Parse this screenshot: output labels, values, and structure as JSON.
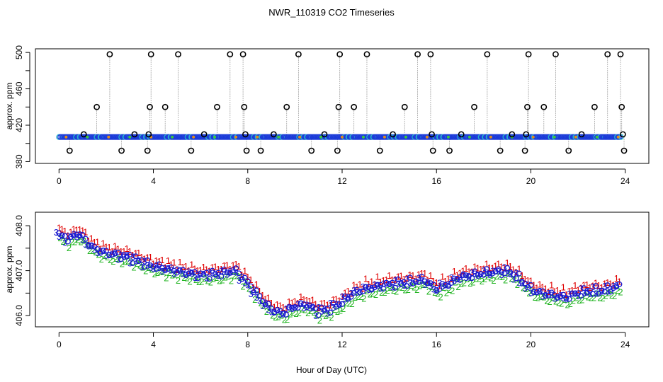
{
  "title": "NWR_110319  CO2 Timeseries",
  "xlabel_common": "Hour of Day (UTC)",
  "chart_data": [
    {
      "type": "scatter",
      "title": "NWR_110319  CO2 Timeseries",
      "ylabel": "approx. ppm",
      "xlim": [
        -1,
        25
      ],
      "ylim": [
        378,
        504
      ],
      "x_ticks": [
        0,
        4,
        8,
        12,
        16,
        20,
        24
      ],
      "x_tick_labels": [
        "0",
        "4",
        "8",
        "12",
        "16",
        "20",
        "24"
      ],
      "y_ticks": [
        380,
        420,
        460,
        500
      ],
      "y_tick_labels": [
        "380",
        "420",
        "460",
        "500"
      ],
      "y_minor_ticks": [
        400,
        440,
        480
      ],
      "baseline": 407,
      "spikes": [
        {
          "x": 0.45,
          "y": 392
        },
        {
          "x": 1.05,
          "y": 410
        },
        {
          "x": 1.6,
          "y": 440
        },
        {
          "x": 2.15,
          "y": 498
        },
        {
          "x": 2.65,
          "y": 392
        },
        {
          "x": 3.2,
          "y": 410
        },
        {
          "x": 3.75,
          "y": 392
        },
        {
          "x": 3.8,
          "y": 410
        },
        {
          "x": 3.85,
          "y": 440
        },
        {
          "x": 3.9,
          "y": 498
        },
        {
          "x": 4.5,
          "y": 440
        },
        {
          "x": 5.05,
          "y": 498
        },
        {
          "x": 5.6,
          "y": 392
        },
        {
          "x": 6.15,
          "y": 410
        },
        {
          "x": 6.7,
          "y": 440
        },
        {
          "x": 7.25,
          "y": 498
        },
        {
          "x": 7.8,
          "y": 498
        },
        {
          "x": 7.85,
          "y": 440
        },
        {
          "x": 7.9,
          "y": 410
        },
        {
          "x": 7.95,
          "y": 392
        },
        {
          "x": 8.55,
          "y": 392
        },
        {
          "x": 9.1,
          "y": 410
        },
        {
          "x": 9.65,
          "y": 440
        },
        {
          "x": 10.15,
          "y": 498
        },
        {
          "x": 10.7,
          "y": 392
        },
        {
          "x": 11.25,
          "y": 410
        },
        {
          "x": 11.8,
          "y": 392
        },
        {
          "x": 11.85,
          "y": 440
        },
        {
          "x": 11.9,
          "y": 498
        },
        {
          "x": 12.5,
          "y": 440
        },
        {
          "x": 13.05,
          "y": 498
        },
        {
          "x": 13.6,
          "y": 392
        },
        {
          "x": 14.15,
          "y": 410
        },
        {
          "x": 14.65,
          "y": 440
        },
        {
          "x": 15.2,
          "y": 498
        },
        {
          "x": 15.75,
          "y": 498
        },
        {
          "x": 15.8,
          "y": 410
        },
        {
          "x": 15.85,
          "y": 392
        },
        {
          "x": 16.55,
          "y": 392
        },
        {
          "x": 17.05,
          "y": 410
        },
        {
          "x": 17.6,
          "y": 440
        },
        {
          "x": 18.15,
          "y": 498
        },
        {
          "x": 18.7,
          "y": 392
        },
        {
          "x": 19.2,
          "y": 410
        },
        {
          "x": 19.75,
          "y": 392
        },
        {
          "x": 19.8,
          "y": 410
        },
        {
          "x": 19.85,
          "y": 440
        },
        {
          "x": 19.9,
          "y": 498
        },
        {
          "x": 20.55,
          "y": 440
        },
        {
          "x": 21.05,
          "y": 498
        },
        {
          "x": 21.6,
          "y": 392
        },
        {
          "x": 22.15,
          "y": 410
        },
        {
          "x": 22.7,
          "y": 440
        },
        {
          "x": 23.25,
          "y": 498
        },
        {
          "x": 23.8,
          "y": 498
        },
        {
          "x": 23.85,
          "y": 440
        },
        {
          "x": 23.9,
          "y": 410
        },
        {
          "x": 23.95,
          "y": 392
        }
      ]
    },
    {
      "type": "scatter",
      "ylabel": "approx. ppm",
      "xlabel": "Hour of Day (UTC)",
      "xlim": [
        -1,
        25
      ],
      "ylim": [
        405.75,
        408.3
      ],
      "x_ticks": [
        0,
        4,
        8,
        12,
        16,
        20,
        24
      ],
      "x_tick_labels": [
        "0",
        "4",
        "8",
        "12",
        "16",
        "20",
        "24"
      ],
      "y_ticks": [
        406.0,
        407.0,
        408.0
      ],
      "y_tick_labels": [
        "406.0",
        "407.0",
        "408.0"
      ],
      "y_minor_ticks": [
        406.5,
        407.5
      ],
      "series": [
        {
          "name": "1",
          "marker": "1",
          "color": "#e00000",
          "offset": 0.13
        },
        {
          "name": "2",
          "marker": "2",
          "color": "#22b422",
          "offset": -0.12
        },
        {
          "name": "3",
          "marker": "3",
          "color": "#1a1ad0",
          "offset": 0.0
        },
        {
          "name": "o",
          "marker": "o",
          "color": "#1a1ad0",
          "offset": 0.0
        }
      ],
      "profile": {
        "x": [
          0,
          0.5,
          0.8,
          1.0,
          1.5,
          2.0,
          2.5,
          3.0,
          3.5,
          4.0,
          5.0,
          6.0,
          7.0,
          7.5,
          7.9,
          8.3,
          8.7,
          9.0,
          9.5,
          10.0,
          10.5,
          11.0,
          11.5,
          12.0,
          12.5,
          13.0,
          14.0,
          15.0,
          15.5,
          16.0,
          16.5,
          17.0,
          18.0,
          19.0,
          19.5,
          20.0,
          20.5,
          21.0,
          21.5,
          22.0,
          22.5,
          23.0,
          23.75
        ],
        "y": [
          407.8,
          407.7,
          407.85,
          407.75,
          407.5,
          407.4,
          407.35,
          407.3,
          407.2,
          407.1,
          407.0,
          406.9,
          406.95,
          407.0,
          406.8,
          406.55,
          406.3,
          406.15,
          406.05,
          406.2,
          406.25,
          406.1,
          406.15,
          406.3,
          406.5,
          406.6,
          406.7,
          406.75,
          406.8,
          406.6,
          406.7,
          406.85,
          406.95,
          407.0,
          406.85,
          406.6,
          406.5,
          406.45,
          406.4,
          406.5,
          406.55,
          406.55,
          406.65
        ]
      }
    }
  ]
}
